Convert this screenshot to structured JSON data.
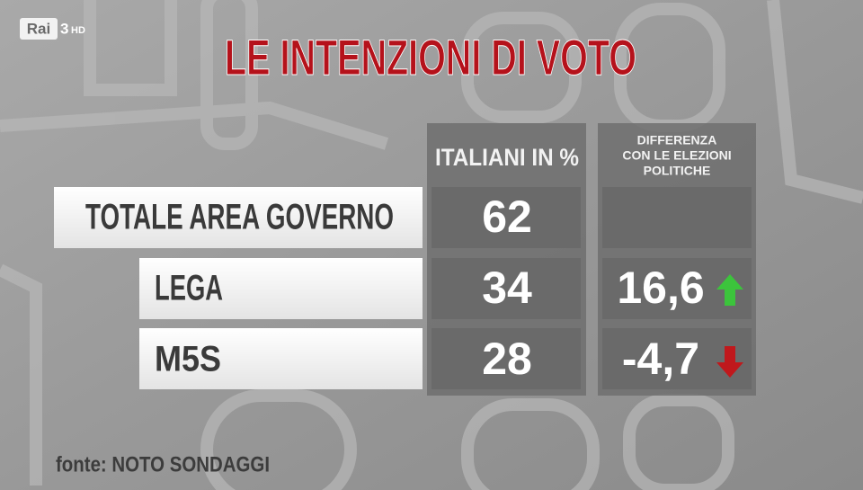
{
  "logo": {
    "brand": "Rai",
    "channel": "3",
    "quality": "HD"
  },
  "title": "LE INTENZIONI DI VOTO",
  "table": {
    "columns": [
      "ITALIANI IN %",
      [
        "DIFFERENZA",
        "CON LE ELEZIONI",
        "POLITICHE"
      ]
    ],
    "rows": [
      {
        "label": "TOTALE AREA GOVERNO",
        "value": 62,
        "difference": null
      },
      {
        "label": "LEGA",
        "value": 34,
        "difference": "16,6"
      },
      {
        "label": "M5S",
        "value": 28,
        "difference": "-4,7"
      }
    ]
  },
  "source": "fonte: NOTO SONDAGGI"
}
